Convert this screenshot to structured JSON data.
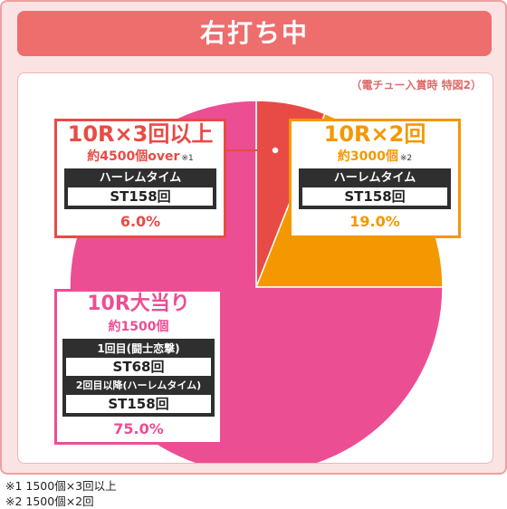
{
  "header": {
    "title": "右打ち中"
  },
  "note": "（電チュー入賞時 特図2）",
  "chart_data": {
    "type": "pie",
    "title": "右打ち中",
    "subtitle": "（電チュー入賞時 特図2）",
    "slices": [
      {
        "label": "10R×3回以上",
        "value": 6.0,
        "value_label": "6.0%",
        "color": "#e84b45",
        "sub": "約4500個over",
        "sub_note": "※1",
        "bar_label": "ハーレムタイム",
        "st": "ST158回"
      },
      {
        "label": "10R×2回",
        "value": 19.0,
        "value_label": "19.0%",
        "color": "#f39800",
        "sub": "約3000個",
        "sub_note": "※2",
        "bar_label": "ハーレムタイム",
        "st": "ST158回"
      },
      {
        "label": "10R大当り",
        "value": 75.0,
        "value_label": "75.0%",
        "color": "#ec4e93",
        "sub": "約1500個",
        "first_label": "1回目(闘士恋撃)",
        "first_st": "ST68回",
        "second_label": "2回目以降(ハーレムタイム)",
        "second_st": "ST158回"
      }
    ]
  },
  "footnotes": [
    "※1 1500個×3回以上",
    "※2 1500個×2回"
  ]
}
